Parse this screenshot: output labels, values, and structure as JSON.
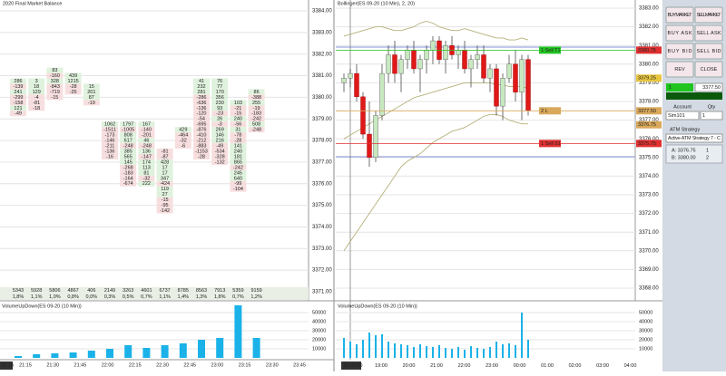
{
  "left_chart": {
    "title": "2020 Final Market Balance",
    "price_axis": [
      {
        "value": 3384,
        "label": "3384.00"
      },
      {
        "value": 3383,
        "label": "3383.00"
      },
      {
        "value": 3382,
        "label": "3382.00"
      },
      {
        "value": 3381,
        "label": "3381.00"
      },
      {
        "value": 3380,
        "label": "3380.00"
      },
      {
        "value": 3379,
        "label": "3379.00"
      },
      {
        "value": 3378,
        "label": "3378.00"
      },
      {
        "value": 3377,
        "label": "3377.00"
      },
      {
        "value": 3376,
        "label": "3376.00"
      },
      {
        "value": 3375,
        "label": "3375.00"
      },
      {
        "value": 3374,
        "label": "3374.00"
      },
      {
        "value": 3373,
        "label": "3373.00"
      },
      {
        "value": 3372,
        "label": "3372.00"
      },
      {
        "value": 3371,
        "label": "3371.00"
      }
    ],
    "footprint": [
      {
        "top": 3380.75,
        "cells": [
          "286",
          "-139",
          "241",
          "-299",
          "-158",
          "121",
          "-49"
        ]
      },
      {
        "top": 3380.75,
        "cells": [
          "3",
          "18",
          "129",
          "-4",
          "-81",
          "-18"
        ]
      },
      {
        "top": 3381.25,
        "cells": [
          "83",
          "-160",
          "328",
          "-843",
          "-719",
          "-15"
        ]
      },
      {
        "top": 3381.0,
        "cells": [
          "439",
          "1215",
          "-28",
          "-25"
        ]
      },
      {
        "top": 3380.5,
        "cells": [
          "15",
          "201",
          "87",
          "-19"
        ]
      },
      {
        "top": 3378.75,
        "cells": [
          "1062",
          "-1511",
          "-173",
          "-146",
          "-211",
          "-136",
          "-16"
        ]
      },
      {
        "top": 3378.75,
        "cells": [
          "1797",
          "-1005",
          "808",
          "617",
          "-248",
          "385",
          "565",
          "145",
          "-268",
          "-183",
          "-164",
          "-674"
        ]
      },
      {
        "top": 3378.75,
        "cells": [
          "167",
          "-140",
          "-201",
          "46",
          "-248",
          "136",
          "-147",
          "174",
          "113",
          "81",
          "-32",
          "222"
        ]
      },
      {
        "top": 3377.5,
        "cells": [
          "-81",
          "-87",
          "428",
          "17",
          "17",
          "347",
          "-424",
          "119",
          "27",
          "-15",
          "-95",
          "-142"
        ]
      },
      {
        "top": 3378.5,
        "cells": [
          "429",
          "-464",
          "-32",
          "-6"
        ]
      },
      {
        "top": 3380.75,
        "cells": [
          "41",
          "232",
          "281",
          "-286",
          "-636",
          "-136",
          "-120",
          "-54",
          "-695",
          "-876",
          "-410",
          "-212",
          "-883",
          "-1153",
          "-28"
        ]
      },
      {
        "top": 3380.75,
        "cells": [
          "76",
          "77",
          "170",
          "356",
          "230",
          "93",
          "-23",
          "26",
          "-3",
          "269",
          "146",
          "216",
          "-49",
          "-534",
          "-328",
          "-132"
        ]
      },
      {
        "top": 3379.75,
        "cells": [
          "103",
          "-21",
          "-15",
          "240",
          "-56",
          "31",
          "-78",
          "-28",
          "141",
          "240",
          "181",
          "865",
          "-242",
          "245",
          "640",
          "-99",
          "-104"
        ]
      },
      {
        "top": 3380.25,
        "cells": [
          "86",
          "-388",
          "255",
          "-19",
          "-183",
          "-242",
          "508",
          "-248"
        ]
      }
    ],
    "totals": [
      "5343",
      "5928",
      "5806",
      "4867",
      "406",
      "2149",
      "3263",
      "4601",
      "6737",
      "8785",
      "8563",
      "7913",
      "5359",
      "9159"
    ],
    "percents": [
      "1,8%",
      "1,1%",
      "1,0%",
      "0,8%",
      "0,0%",
      "0,3%",
      "0,5%",
      "0,7%",
      "1,1%",
      "1,4%",
      "1,3%",
      "1,8%",
      "0,7%",
      "1,2%"
    ],
    "volume_title": "VolumeUpDown(ES 09-20 (10 Min))",
    "volume_axis": [
      50000,
      40000,
      30000,
      20000,
      10000
    ],
    "volume_range": [
      0,
      60000
    ],
    "volume": [
      2000,
      4000,
      5000,
      6000,
      8000,
      10000,
      14000,
      11000,
      14000,
      16000,
      20000,
      22000,
      58000,
      22000
    ],
    "time_axis": [
      "21:15",
      "21:30",
      "21:45",
      "22:00",
      "22:15",
      "22:30",
      "22:45",
      "23:00",
      "23:15",
      "23:30",
      "23:45"
    ],
    "corner_time": "21:10"
  },
  "main_chart": {
    "title": "Bollinger(ES 09-20 (10 Min), 2, 20)",
    "price_axis": [
      {
        "value": 3383,
        "label": "3383.00"
      },
      {
        "value": 3382,
        "label": "3382.00"
      },
      {
        "value": 3381,
        "label": "3381.00"
      },
      {
        "value": 3380,
        "label": "3380.00"
      },
      {
        "value": 3379,
        "label": "3379.00"
      },
      {
        "value": 3378,
        "label": "3378.00"
      },
      {
        "value": 3377,
        "label": "3377.00"
      },
      {
        "value": 3376,
        "label": "3376.00"
      },
      {
        "value": 3375,
        "label": "3375.00"
      },
      {
        "value": 3374,
        "label": "3374.00"
      },
      {
        "value": 3373,
        "label": "3373.00"
      },
      {
        "value": 3372,
        "label": "3372.00"
      },
      {
        "value": 3371,
        "label": "3371.00"
      },
      {
        "value": 3370,
        "label": "3370.00"
      },
      {
        "value": 3369,
        "label": "3369.00"
      },
      {
        "value": 3368,
        "label": "3368.00"
      }
    ],
    "candles": [
      [
        3379,
        3379.5,
        3378.5,
        3379.25
      ],
      [
        3379.25,
        3379.75,
        3378.75,
        3379.5
      ],
      [
        3379.5,
        3380,
        3378,
        3378.25
      ],
      [
        3378.25,
        3378.5,
        3376,
        3376.25
      ],
      [
        3376.25,
        3378,
        3374.5,
        3375
      ],
      [
        3375,
        3377.5,
        3374.75,
        3377.25
      ],
      [
        3377.25,
        3380,
        3377,
        3379.5
      ],
      [
        3379.5,
        3381,
        3379,
        3380.5
      ],
      [
        3380.5,
        3381.25,
        3379,
        3379.5
      ],
      [
        3379.5,
        3380.5,
        3378.5,
        3380.25
      ],
      [
        3380.25,
        3381,
        3379.75,
        3380.75
      ],
      [
        3380.75,
        3381.25,
        3379.5,
        3379.75
      ],
      [
        3379.75,
        3380.5,
        3378.5,
        3380.25
      ],
      [
        3380.25,
        3381,
        3379.5,
        3380.75
      ],
      [
        3380.75,
        3381.5,
        3380,
        3381.25
      ],
      [
        3381.25,
        3381.5,
        3380,
        3380.25
      ],
      [
        3380.25,
        3381.25,
        3379.5,
        3381
      ],
      [
        3381,
        3381.5,
        3380.25,
        3380.5
      ],
      [
        3380.5,
        3381,
        3379.75,
        3380.75
      ],
      [
        3380.75,
        3381.25,
        3379.5,
        3379.75
      ],
      [
        3379.75,
        3380.5,
        3378.75,
        3380.25
      ],
      [
        3380.25,
        3381,
        3379.75,
        3380.5
      ],
      [
        3380.5,
        3381,
        3379,
        3379.25
      ],
      [
        3379.25,
        3380,
        3378.5,
        3379.75
      ],
      [
        3379.75,
        3380,
        3377.25,
        3377.75
      ],
      [
        3377.75,
        3379.5,
        3377,
        3379.25
      ],
      [
        3379.25,
        3380.5,
        3379,
        3380
      ],
      [
        3380,
        3380.75,
        3378,
        3378.5
      ],
      [
        3378.5,
        3380.5,
        3377,
        3380.25
      ],
      [
        3380.25,
        3380.5,
        3377.25,
        3377.5
      ]
    ],
    "bollinger": {
      "upper": [
        3381.5,
        3381.6,
        3381.7,
        3381.8,
        3381.9,
        3382,
        3382,
        3381.9,
        3381.8,
        3381.8,
        3381.9,
        3382,
        3382.2,
        3382.3,
        3382.2,
        3382,
        3381.9,
        3381.8,
        3381.8,
        3381.9,
        3381.8,
        3381.7,
        3381.6,
        3381.5,
        3381.4,
        3381.4,
        3381.3,
        3381.3,
        3381.4,
        3381.3
      ],
      "middle": [
        3376,
        3376.2,
        3376.4,
        3376.6,
        3376.8,
        3377,
        3377.2,
        3377.4,
        3377.6,
        3377.8,
        3378,
        3378.2,
        3378.3,
        3378.4,
        3378.5,
        3378.6,
        3378.7,
        3378.8,
        3378.9,
        3379,
        3379,
        3379,
        3379,
        3379,
        3378.9,
        3378.9,
        3378.8,
        3378.8,
        3378.8,
        3378.7
      ],
      "lower": [
        3370,
        3370.5,
        3371,
        3371.5,
        3372,
        3372.5,
        3373,
        3373.5,
        3374,
        3374.5,
        3374.8,
        3375,
        3375.2,
        3375.5,
        3375.8,
        3376,
        3376.2,
        3376.4,
        3376.5,
        3376.6,
        3376.8,
        3377,
        3377.2,
        3377.3,
        3377.3,
        3377.2,
        3377,
        3376.9,
        3376.8,
        3376.8
      ],
      "color": "#b5b07a"
    },
    "markers": [
      {
        "value": 3380.75,
        "label": "3380.75",
        "color": "#e03030"
      },
      {
        "value": 3379.25,
        "label": "3379.25",
        "color": "#e8c640"
      },
      {
        "value": 3377.5,
        "label": "3377.50",
        "color": "#d9a85b"
      },
      {
        "value": 3376.75,
        "label": "3376.75",
        "color": "#d9a85b"
      },
      {
        "value": 3375.75,
        "label": "3375.75",
        "color": "#e03030"
      }
    ],
    "orders": [
      {
        "label": "1 Sell T1",
        "price": 3380.75,
        "color": "#22c322"
      },
      {
        "label": "2 L",
        "price": 3377.5,
        "color": "#d9a85b"
      },
      {
        "label": "1 Sell S1",
        "price": 3375.75,
        "color": "#e03030"
      }
    ],
    "volume_title": "VolumeUpDown(ES 09-20 (10 Min))",
    "volume_axis": [
      50000,
      40000,
      30000,
      20000,
      10000
    ],
    "volume_range": [
      0,
      60000
    ],
    "volume": [
      22000,
      18000,
      15000,
      20000,
      28000,
      25000,
      26000,
      18000,
      16000,
      15000,
      14000,
      12000,
      15000,
      13000,
      12000,
      14000,
      11000,
      10000,
      12000,
      9000,
      13000,
      11000,
      10000,
      12000,
      18000,
      15000,
      16000,
      14000,
      50000,
      20000
    ],
    "time_cursor": "19:00:00",
    "time_axis": [
      "19:00",
      "20:00",
      "21:00",
      "22:00",
      "23:00",
      "00:00",
      "01:00",
      "02:00",
      "03:00",
      "04:00"
    ]
  },
  "order_panel": {
    "buttons": [
      [
        "BUY MARKET",
        "SELL MARKET"
      ],
      [
        "BUY ASK",
        "SELL ASK"
      ],
      [
        "BUY BID",
        "SELL BID"
      ],
      [
        "REV",
        "CLOSE"
      ]
    ],
    "quantity": "1",
    "price": "3377.50",
    "account_label": "Account",
    "qty_label": "Qty",
    "account": "Sim101",
    "qty": "1",
    "atm_label": "ATM Strategy",
    "atm": "Active ATM Strategy 7 - C",
    "positions": [
      [
        "A: 3376.75",
        "1"
      ],
      [
        "B: 3380.00",
        "2"
      ]
    ]
  }
}
